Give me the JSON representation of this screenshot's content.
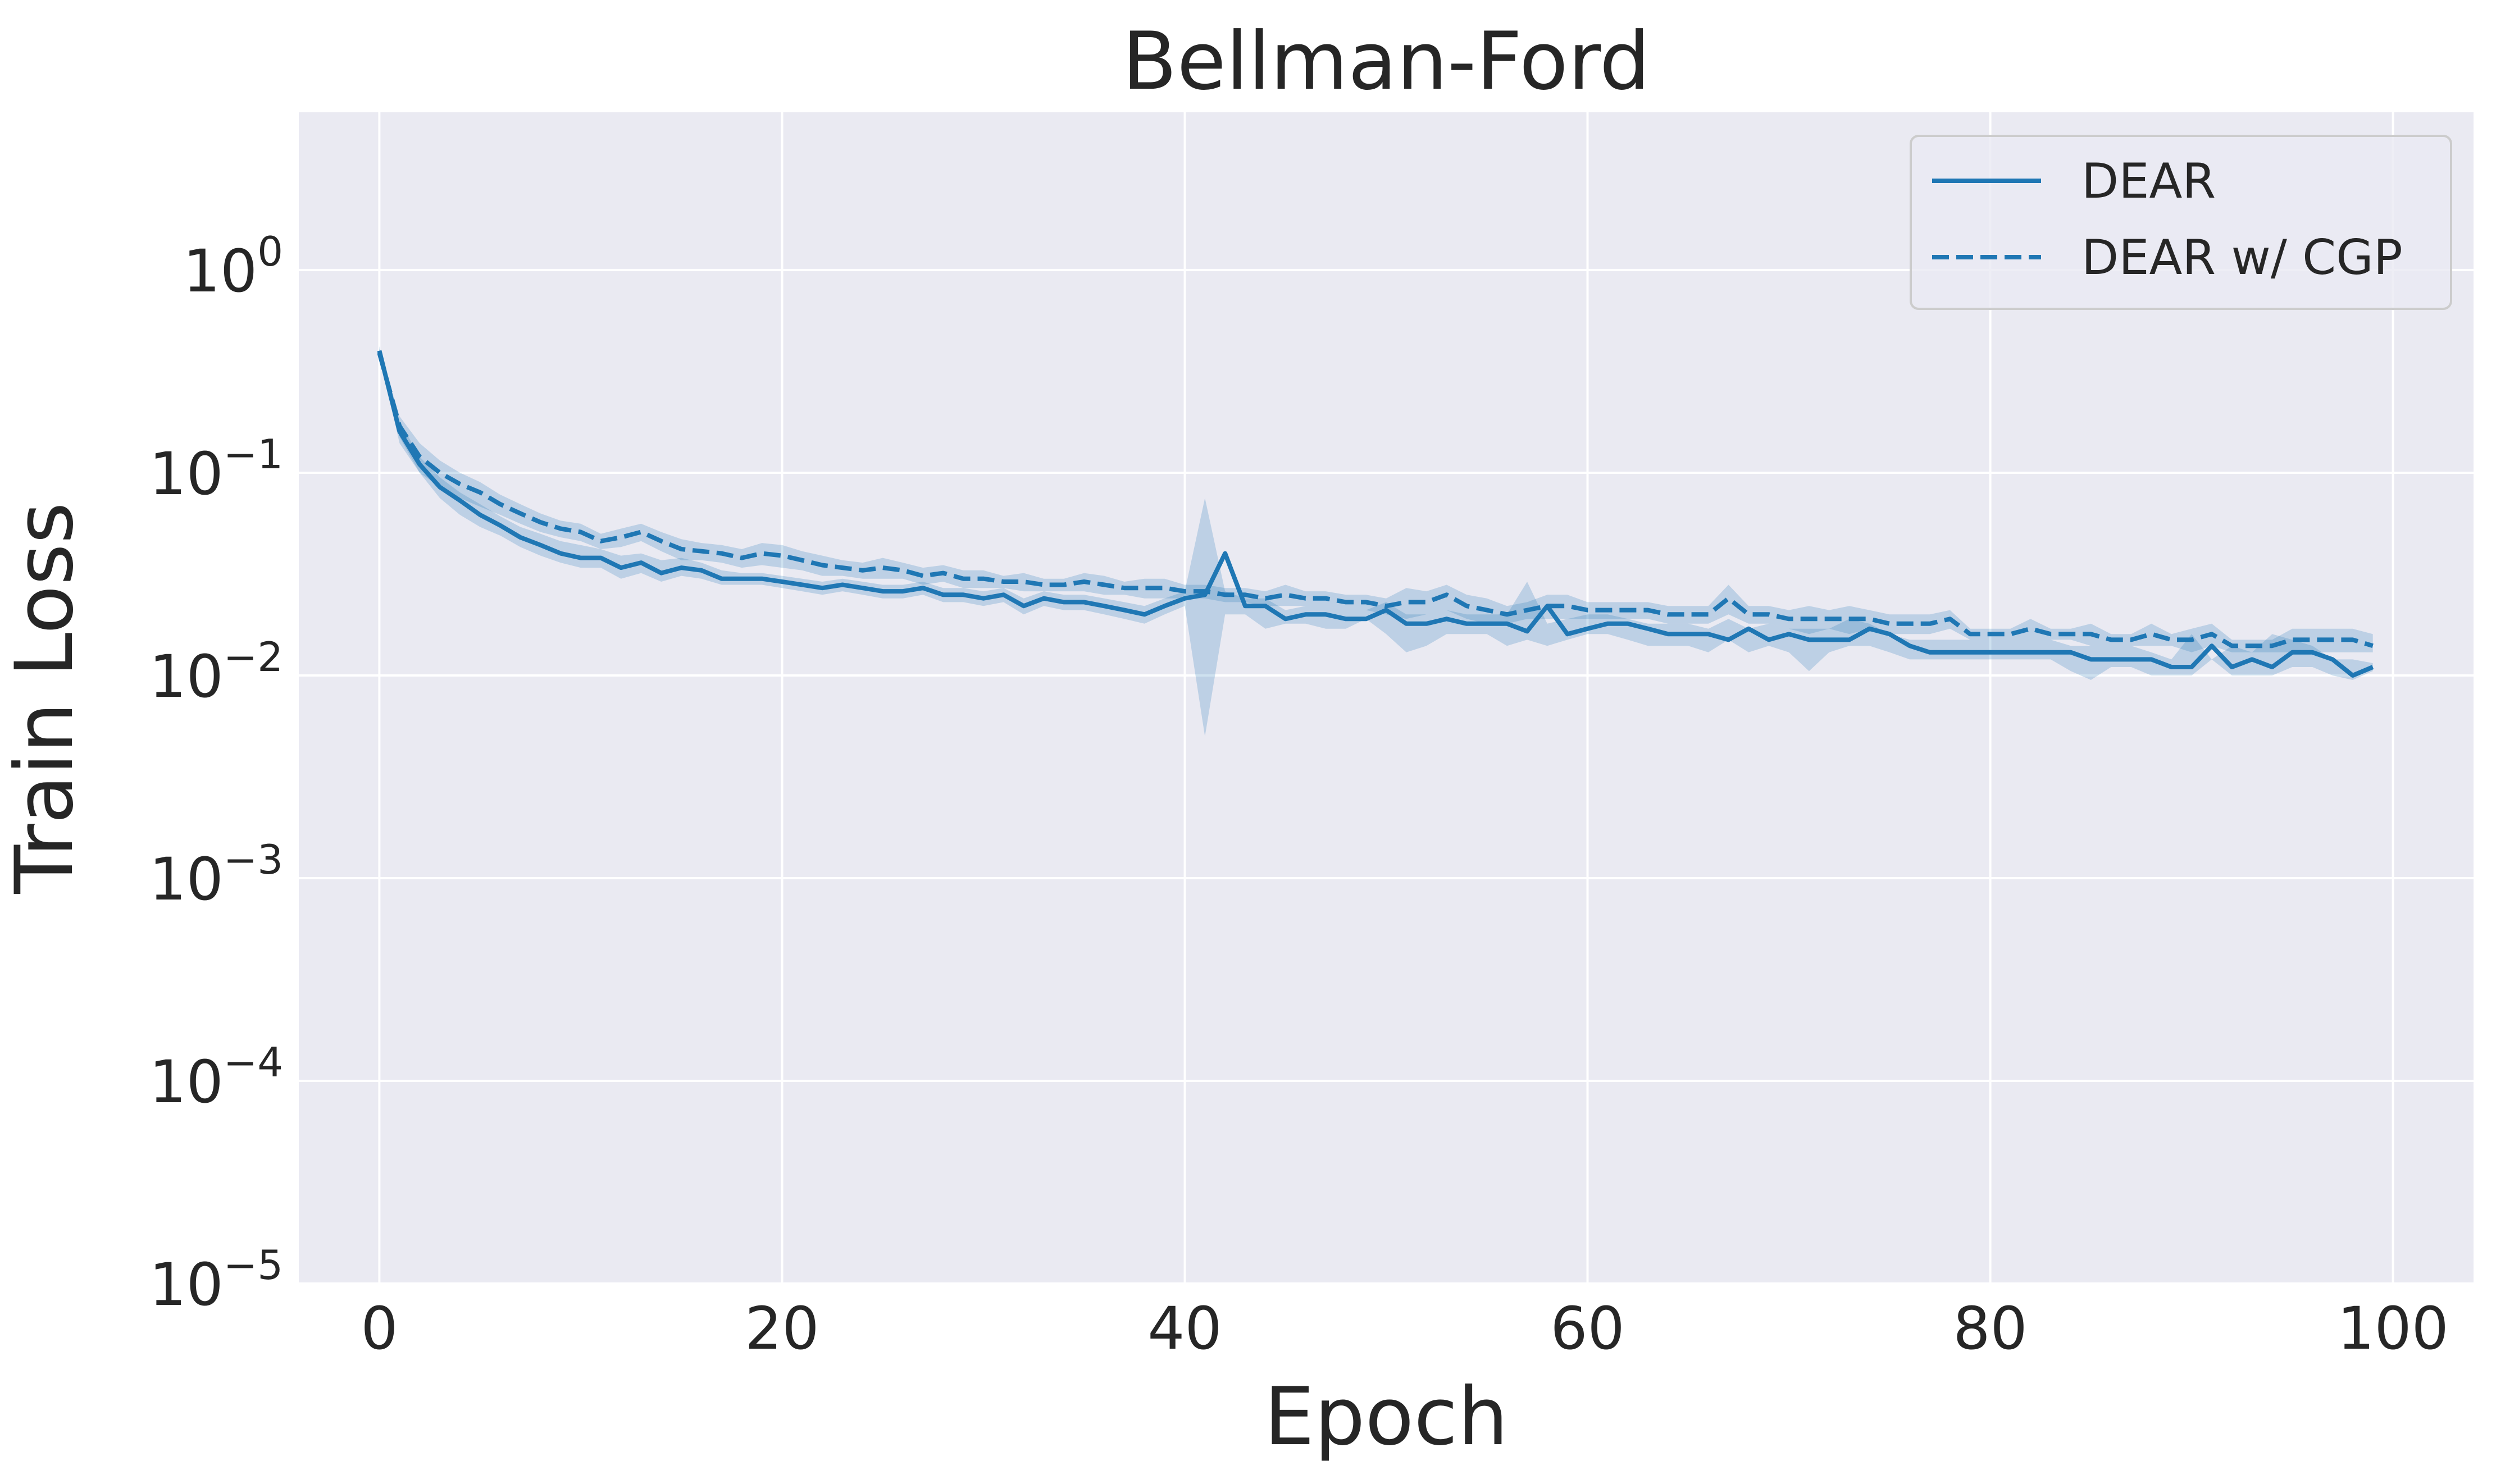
{
  "chart_data": {
    "type": "line",
    "title": "Bellman-Ford",
    "xlabel": "Epoch",
    "ylabel": "Train Loss",
    "xlim": [
      -4,
      104
    ],
    "ylim": [
      1e-05,
      6
    ],
    "yscale": "log",
    "x_ticks": [
      0,
      20,
      40,
      60,
      80,
      100
    ],
    "y_ticks": [
      {
        "value": 1,
        "base": "10",
        "exp": "0"
      },
      {
        "value": 0.1,
        "base": "10",
        "exp": "−1"
      },
      {
        "value": 0.01,
        "base": "10",
        "exp": "−2"
      },
      {
        "value": 0.001,
        "base": "10",
        "exp": "−3"
      },
      {
        "value": 0.0001,
        "base": "10",
        "exp": "−4"
      },
      {
        "value": 1e-05,
        "base": "10",
        "exp": "−5"
      }
    ],
    "grid": true,
    "legend_position": "top-right",
    "colors": {
      "line": "#1f77b4",
      "band": "#1f77b4",
      "plot_bg": "#eaeaf2",
      "grid": "#ffffff"
    },
    "series": [
      {
        "name": "DEAR",
        "style": "solid",
        "x_start": 0,
        "values": [
          0.4,
          0.16,
          0.11,
          0.085,
          0.073,
          0.062,
          0.055,
          0.048,
          0.044,
          0.04,
          0.038,
          0.038,
          0.034,
          0.036,
          0.032,
          0.034,
          0.033,
          0.03,
          0.03,
          0.03,
          0.029,
          0.028,
          0.027,
          0.028,
          0.027,
          0.026,
          0.026,
          0.027,
          0.025,
          0.025,
          0.024,
          0.025,
          0.022,
          0.024,
          0.023,
          0.023,
          0.022,
          0.021,
          0.02,
          0.022,
          0.024,
          0.025,
          0.04,
          0.022,
          0.022,
          0.019,
          0.02,
          0.02,
          0.019,
          0.019,
          0.021,
          0.018,
          0.018,
          0.019,
          0.018,
          0.018,
          0.018,
          0.0165,
          0.022,
          0.016,
          0.017,
          0.018,
          0.018,
          0.017,
          0.016,
          0.016,
          0.016,
          0.015,
          0.017,
          0.015,
          0.016,
          0.015,
          0.015,
          0.015,
          0.017,
          0.016,
          0.014,
          0.013,
          0.013,
          0.013,
          0.013,
          0.013,
          0.013,
          0.013,
          0.013,
          0.012,
          0.012,
          0.012,
          0.012,
          0.011,
          0.011,
          0.014,
          0.011,
          0.012,
          0.011,
          0.013,
          0.013,
          0.012,
          0.01,
          0.011
        ],
        "band_lower": [
          0.38,
          0.14,
          0.1,
          0.075,
          0.062,
          0.054,
          0.049,
          0.043,
          0.039,
          0.036,
          0.034,
          0.034,
          0.03,
          0.032,
          0.029,
          0.031,
          0.03,
          0.028,
          0.028,
          0.028,
          0.027,
          0.026,
          0.025,
          0.026,
          0.025,
          0.024,
          0.024,
          0.025,
          0.023,
          0.023,
          0.022,
          0.023,
          0.02,
          0.022,
          0.021,
          0.021,
          0.02,
          0.019,
          0.018,
          0.02,
          0.022,
          0.005,
          0.02,
          0.02,
          0.017,
          0.018,
          0.018,
          0.017,
          0.017,
          0.019,
          0.016,
          0.013,
          0.014,
          0.016,
          0.016,
          0.016,
          0.014,
          0.015,
          0.014,
          0.015,
          0.016,
          0.016,
          0.015,
          0.014,
          0.014,
          0.014,
          0.013,
          0.015,
          0.013,
          0.014,
          0.013,
          0.0105,
          0.013,
          0.014,
          0.014,
          0.013,
          0.012,
          0.012,
          0.012,
          0.012,
          0.012,
          0.012,
          0.012,
          0.012,
          0.0105,
          0.0095,
          0.011,
          0.011,
          0.01,
          0.01,
          0.01,
          0.012,
          0.01,
          0.01,
          0.01,
          0.011,
          0.011,
          0.01,
          0.0095,
          0.0105
        ],
        "band_upper": [
          0.42,
          0.18,
          0.12,
          0.095,
          0.08,
          0.07,
          0.061,
          0.054,
          0.05,
          0.046,
          0.044,
          0.042,
          0.039,
          0.04,
          0.037,
          0.038,
          0.036,
          0.033,
          0.032,
          0.032,
          0.031,
          0.03,
          0.029,
          0.03,
          0.029,
          0.028,
          0.028,
          0.029,
          0.027,
          0.027,
          0.026,
          0.027,
          0.024,
          0.026,
          0.025,
          0.025,
          0.024,
          0.023,
          0.022,
          0.024,
          0.026,
          0.075,
          0.026,
          0.024,
          0.024,
          0.021,
          0.022,
          0.022,
          0.021,
          0.021,
          0.023,
          0.02,
          0.02,
          0.021,
          0.02,
          0.02,
          0.02,
          0.029,
          0.018,
          0.019,
          0.02,
          0.02,
          0.019,
          0.018,
          0.018,
          0.018,
          0.017,
          0.019,
          0.017,
          0.018,
          0.017,
          0.017,
          0.017,
          0.019,
          0.018,
          0.016,
          0.015,
          0.015,
          0.015,
          0.015,
          0.015,
          0.015,
          0.015,
          0.015,
          0.014,
          0.014,
          0.014,
          0.014,
          0.013,
          0.012,
          0.016,
          0.012,
          0.014,
          0.013,
          0.016,
          0.015,
          0.014,
          0.012,
          0.012,
          0.0115
        ]
      },
      {
        "name": "DEAR w/ CGP",
        "style": "dashed",
        "x_start": 0,
        "values": [
          0.39,
          0.17,
          0.12,
          0.1,
          0.088,
          0.08,
          0.07,
          0.063,
          0.057,
          0.053,
          0.051,
          0.046,
          0.048,
          0.051,
          0.046,
          0.042,
          0.041,
          0.04,
          0.038,
          0.04,
          0.039,
          0.037,
          0.035,
          0.034,
          0.033,
          0.034,
          0.033,
          0.031,
          0.032,
          0.03,
          0.03,
          0.029,
          0.029,
          0.028,
          0.028,
          0.029,
          0.028,
          0.027,
          0.027,
          0.027,
          0.026,
          0.026,
          0.025,
          0.025,
          0.024,
          0.025,
          0.024,
          0.024,
          0.023,
          0.023,
          0.022,
          0.023,
          0.023,
          0.025,
          0.022,
          0.021,
          0.02,
          0.021,
          0.022,
          0.022,
          0.021,
          0.021,
          0.021,
          0.021,
          0.02,
          0.02,
          0.02,
          0.024,
          0.02,
          0.02,
          0.019,
          0.019,
          0.019,
          0.019,
          0.019,
          0.018,
          0.018,
          0.018,
          0.019,
          0.016,
          0.016,
          0.016,
          0.017,
          0.016,
          0.016,
          0.016,
          0.015,
          0.015,
          0.016,
          0.015,
          0.015,
          0.016,
          0.014,
          0.014,
          0.014,
          0.015,
          0.015,
          0.015,
          0.015,
          0.014
        ],
        "band_lower": [
          0.37,
          0.15,
          0.1,
          0.085,
          0.075,
          0.068,
          0.062,
          0.056,
          0.051,
          0.048,
          0.046,
          0.042,
          0.043,
          0.046,
          0.041,
          0.037,
          0.037,
          0.036,
          0.034,
          0.035,
          0.034,
          0.033,
          0.031,
          0.031,
          0.03,
          0.03,
          0.03,
          0.028,
          0.029,
          0.027,
          0.027,
          0.027,
          0.026,
          0.026,
          0.026,
          0.026,
          0.025,
          0.025,
          0.024,
          0.024,
          0.024,
          0.024,
          0.023,
          0.023,
          0.022,
          0.022,
          0.022,
          0.022,
          0.021,
          0.021,
          0.02,
          0.019,
          0.02,
          0.021,
          0.019,
          0.018,
          0.018,
          0.019,
          0.019,
          0.019,
          0.019,
          0.019,
          0.019,
          0.019,
          0.018,
          0.018,
          0.018,
          0.02,
          0.018,
          0.018,
          0.017,
          0.016,
          0.017,
          0.016,
          0.017,
          0.016,
          0.016,
          0.016,
          0.017,
          0.015,
          0.015,
          0.015,
          0.015,
          0.015,
          0.015,
          0.014,
          0.014,
          0.014,
          0.014,
          0.014,
          0.013,
          0.014,
          0.013,
          0.013,
          0.013,
          0.013,
          0.013,
          0.013,
          0.013,
          0.013
        ],
        "band_upper": [
          0.41,
          0.19,
          0.14,
          0.115,
          0.1,
          0.09,
          0.078,
          0.07,
          0.063,
          0.058,
          0.056,
          0.05,
          0.053,
          0.056,
          0.051,
          0.047,
          0.045,
          0.044,
          0.042,
          0.045,
          0.044,
          0.041,
          0.039,
          0.037,
          0.036,
          0.038,
          0.036,
          0.034,
          0.035,
          0.033,
          0.033,
          0.031,
          0.032,
          0.03,
          0.03,
          0.032,
          0.031,
          0.029,
          0.03,
          0.03,
          0.028,
          0.028,
          0.027,
          0.027,
          0.026,
          0.028,
          0.026,
          0.026,
          0.025,
          0.025,
          0.024,
          0.027,
          0.026,
          0.028,
          0.025,
          0.024,
          0.022,
          0.023,
          0.025,
          0.025,
          0.023,
          0.023,
          0.023,
          0.023,
          0.022,
          0.022,
          0.022,
          0.028,
          0.022,
          0.022,
          0.021,
          0.022,
          0.021,
          0.022,
          0.021,
          0.02,
          0.02,
          0.02,
          0.021,
          0.017,
          0.017,
          0.017,
          0.019,
          0.017,
          0.017,
          0.018,
          0.016,
          0.016,
          0.018,
          0.016,
          0.017,
          0.018,
          0.015,
          0.015,
          0.015,
          0.017,
          0.017,
          0.017,
          0.017,
          0.016
        ]
      }
    ]
  }
}
